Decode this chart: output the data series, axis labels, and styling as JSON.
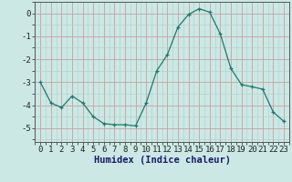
{
  "x": [
    0,
    1,
    2,
    3,
    4,
    5,
    6,
    7,
    8,
    9,
    10,
    11,
    12,
    13,
    14,
    15,
    16,
    17,
    18,
    19,
    20,
    21,
    22,
    23
  ],
  "y": [
    -3.0,
    -3.9,
    -4.1,
    -3.6,
    -3.9,
    -4.5,
    -4.8,
    -4.85,
    -4.85,
    -4.9,
    -3.9,
    -2.5,
    -1.8,
    -0.6,
    -0.05,
    0.2,
    0.05,
    -0.9,
    -2.4,
    -3.1,
    -3.2,
    -3.3,
    -4.3,
    -4.7
  ],
  "line_color": "#1a7a6e",
  "marker": "+",
  "bg_color": "#cce8e4",
  "minor_grid_color": "#aacfcb",
  "major_grid_color": "#c8a0a0",
  "xlabel": "Humidex (Indice chaleur)",
  "ytick_labels": [
    "0",
    "-1",
    "-2",
    "-3",
    "-4",
    "-5"
  ],
  "ytick_vals": [
    0,
    -1,
    -2,
    -3,
    -4,
    -5
  ],
  "ylim": [
    -5.6,
    0.5
  ],
  "xlim": [
    -0.5,
    23.5
  ],
  "tick_fontsize": 6.5,
  "label_fontsize": 7.5
}
